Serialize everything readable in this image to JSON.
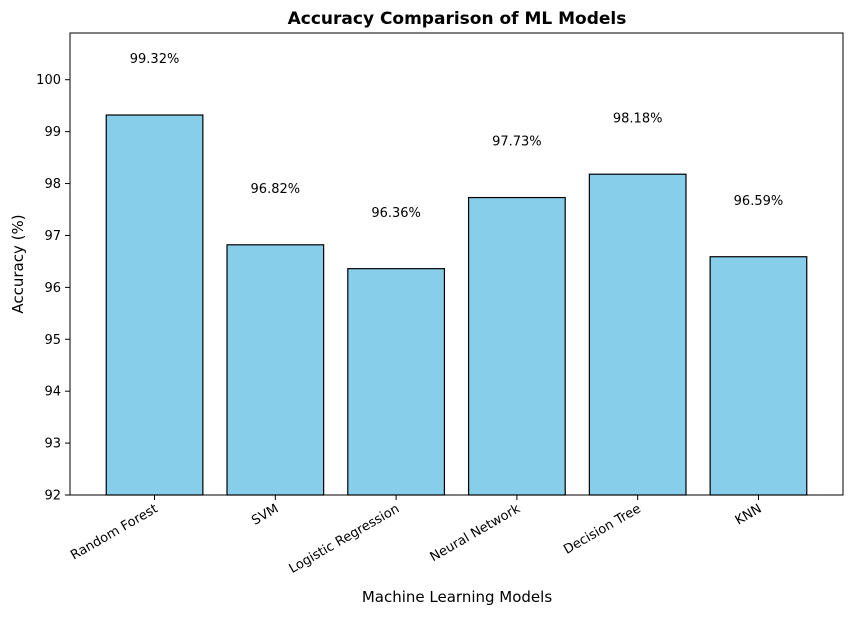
{
  "chart_data": {
    "type": "bar",
    "title": "Accuracy Comparison of ML Models",
    "xlabel": "Machine Learning Models",
    "ylabel": "Accuracy (%)",
    "categories": [
      "Random Forest",
      "SVM",
      "Logistic Regression",
      "Neural Network",
      "Decision Tree",
      "KNN"
    ],
    "values": [
      99.32,
      96.82,
      96.36,
      97.73,
      98.18,
      96.59
    ],
    "data_labels": [
      "99.32%",
      "96.82%",
      "96.36%",
      "97.73%",
      "98.18%",
      "96.59%"
    ],
    "ylim": [
      92,
      100.9
    ],
    "yticks": [
      92,
      93,
      94,
      95,
      96,
      97,
      98,
      99,
      100
    ],
    "grid": false,
    "bar_color": "#87CEEB",
    "bar_edge_color": "#000000"
  }
}
